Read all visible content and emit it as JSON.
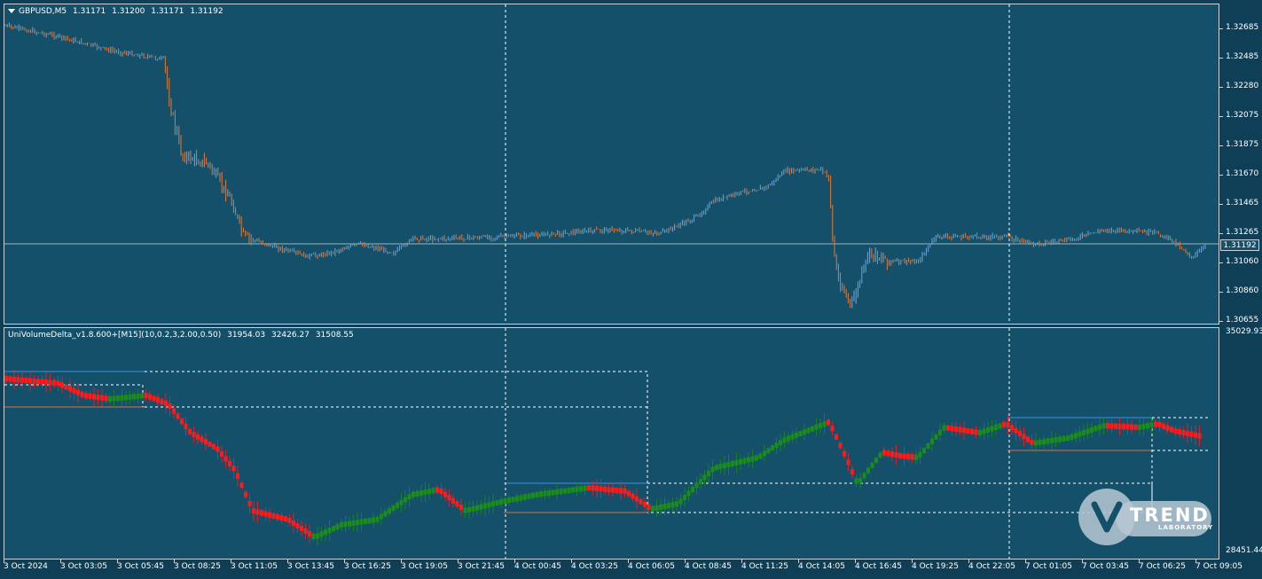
{
  "main_chart": {
    "symbol": "GBPUSD,M5",
    "ohlc": [
      "1.31171",
      "1.31200",
      "1.31171",
      "1.31192"
    ],
    "price_ticks": [
      "1.32685",
      "1.32485",
      "1.32280",
      "1.32075",
      "1.31875",
      "1.31670",
      "1.31465",
      "1.31265",
      "1.31060",
      "1.30860",
      "1.30655"
    ],
    "current_price": "1.31192",
    "colors": {
      "up_bar": "#6aa8d8",
      "down_bar": "#e07a3a",
      "price_line": "#9fb3bf",
      "background": "#15506b"
    }
  },
  "indicator": {
    "name": "UniVolumeDelta_v1.8.600+[M15](10,0.2,3,2.00,0.50)",
    "values": [
      "31954.03",
      "32426.27",
      "31508.55"
    ],
    "axis_top": "35029.93",
    "axis_bottom": "28451.44",
    "colors": {
      "up": "#1a8c1a",
      "down": "#ff1a1a",
      "high_level": "#3a8fe6",
      "low_level": "#e0703a",
      "box": "#ffffff"
    }
  },
  "time_axis": [
    "3 Oct 2024",
    "3 Oct 03:05",
    "3 Oct 05:45",
    "3 Oct 08:25",
    "3 Oct 11:05",
    "3 Oct 13:45",
    "3 Oct 16:25",
    "3 Oct 19:05",
    "3 Oct 21:45",
    "4 Oct 00:45",
    "4 Oct 03:25",
    "4 Oct 06:05",
    "4 Oct 08:45",
    "4 Oct 11:25",
    "4 Oct 14:05",
    "4 Oct 16:45",
    "4 Oct 19:25",
    "4 Oct 22:05",
    "7 Oct 01:05",
    "7 Oct 03:45",
    "7 Oct 06:25",
    "7 Oct 09:05"
  ],
  "logo": {
    "word": "TREND",
    "sub": "LABORATORY"
  }
}
